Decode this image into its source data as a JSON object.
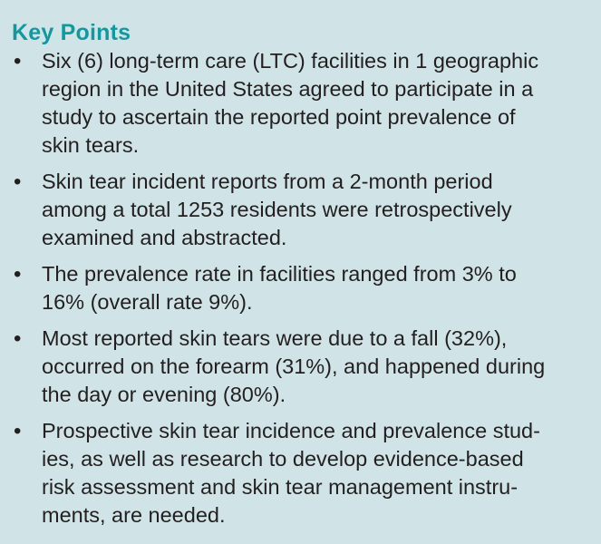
{
  "title": "Key Points",
  "colors": {
    "title": "#0f9a9f",
    "background": "#d0e4e7",
    "text": "#231f20"
  },
  "items": [
    {
      "lines": [
        "Six (6) long-term care (LTC) facilities in 1 geographic",
        "region in the United States agreed to participate in a",
        "study to ascertain the reported point prevalence of",
        "skin tears."
      ]
    },
    {
      "lines": [
        "Skin tear incident reports from a 2-month period",
        "among a total 1253 residents were retrospectively",
        "examined and abstracted."
      ]
    },
    {
      "lines": [
        "The prevalence rate in facilities ranged from 3% to",
        "16% (overall rate 9%)."
      ]
    },
    {
      "lines": [
        "Most reported skin tears were due to a fall (32%),",
        "occurred on the forearm (31%), and happened during",
        "the day or evening (80%)."
      ]
    },
    {
      "lines": [
        "Prospective skin tear incidence and prevalence stud-",
        "ies, as well as research to develop evidence-based",
        "risk assessment and skin tear management instru-",
        "ments, are needed."
      ]
    }
  ]
}
